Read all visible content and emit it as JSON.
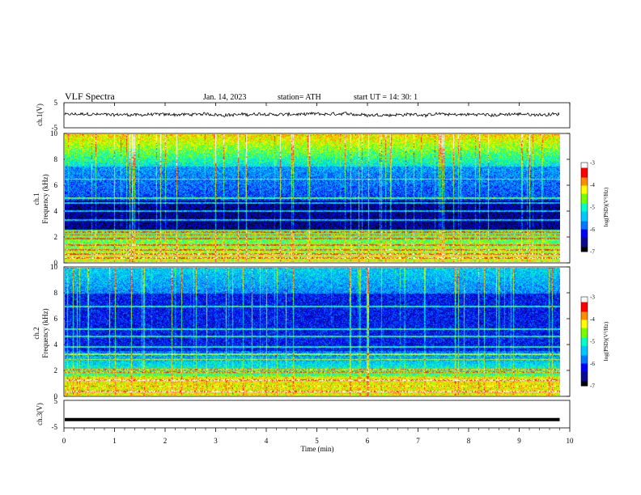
{
  "header": {
    "title": "VLF  Spectra",
    "date": "Jan. 14, 2023",
    "station": "station= ATH",
    "start_ut": "start  UT  =   14: 30: 1"
  },
  "chart_data": [
    {
      "type": "line",
      "name": "ch1-waveform",
      "ylabel": "ch.1(V)",
      "yticks": [
        "5",
        "-5"
      ],
      "ylim": [
        -5,
        5
      ],
      "xlim": [
        0,
        10
      ],
      "x_end_min": 9.8,
      "baseline_v": 0.3,
      "noise_amplitude_v": 0.6
    },
    {
      "type": "heatmap",
      "name": "ch1-spectrogram",
      "ylabel_line1": "ch.1",
      "ylabel_line2": "Frequency  (kHz)",
      "yticks": [
        "0",
        "2",
        "4",
        "6",
        "8",
        "10"
      ],
      "ylim_khz": [
        0,
        10
      ],
      "xlim_min": [
        0,
        9.8
      ],
      "colorbar_label": "log(PSD)(V²/Hz)",
      "colorbar_ticks": [
        "-3",
        "-4",
        "-5",
        "-6",
        "-7"
      ],
      "colorbar_range": [
        -7,
        -3
      ],
      "colormap": [
        "#000000",
        "#0a0a8c",
        "#0000ff",
        "#0078ff",
        "#00c8ff",
        "#00ffc8",
        "#78ff00",
        "#ffff00",
        "#ff8c00",
        "#ff0000",
        "#ffffff"
      ]
    },
    {
      "type": "heatmap",
      "name": "ch2-spectrogram",
      "ylabel_line1": "ch.2",
      "ylabel_line2": "Frequency  (kHz)",
      "yticks": [
        "0",
        "2",
        "4",
        "6",
        "8",
        "10"
      ],
      "ylim_khz": [
        0,
        10
      ],
      "xlim_min": [
        0,
        9.8
      ],
      "colorbar_label": "log(PSD)(V²/Hz)",
      "colorbar_ticks": [
        "-3",
        "-4",
        "-5",
        "-6",
        "-7"
      ],
      "colorbar_range": [
        -7,
        -3
      ]
    },
    {
      "type": "line",
      "name": "ch3-waveform",
      "ylabel": "ch.3(V)",
      "yticks": [
        "5",
        "-5"
      ],
      "ylim": [
        -5,
        5
      ],
      "constant_v": -2,
      "xlabel": "Time  (min)",
      "xticks": [
        "0",
        "1",
        "2",
        "3",
        "4",
        "5",
        "6",
        "7",
        "8",
        "9",
        "10"
      ],
      "xlim": [
        0,
        10
      ],
      "x_end_min": 9.8
    }
  ]
}
